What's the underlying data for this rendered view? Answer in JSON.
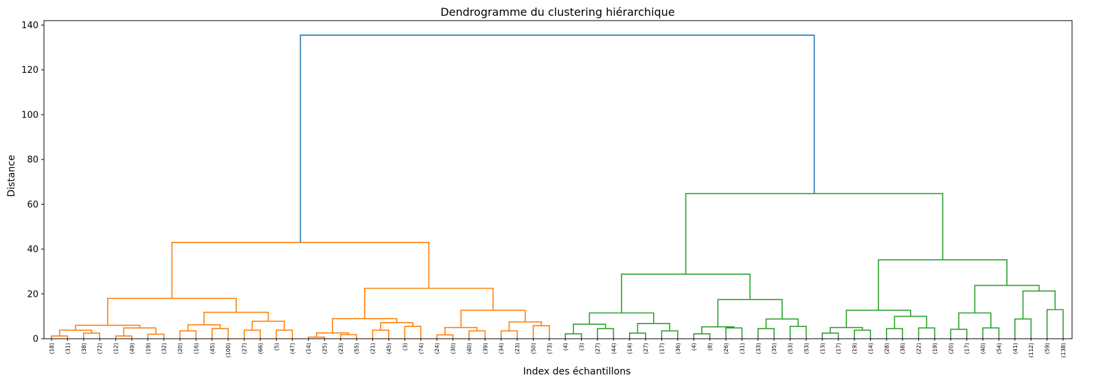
{
  "chart_data": {
    "type": "dendrogram",
    "title": "Dendrogramme du clustering hiérarchique",
    "xlabel": "Index des échantillons",
    "ylabel": "Distance",
    "ylim": [
      0,
      142
    ],
    "yticks": [
      0,
      20,
      40,
      60,
      80,
      100,
      120,
      140
    ],
    "grid": false,
    "colors": {
      "cluster_a": "#ff7f0e",
      "cluster_b": "#2ca02c",
      "root": "#1f77b4",
      "axis": "#000000"
    },
    "leaves": [
      "(18)",
      "(31)",
      "(38)",
      "(72)",
      "(12)",
      "(49)",
      "(19)",
      "(32)",
      "(20)",
      "(16)",
      "(45)",
      "(100)",
      "(27)",
      "(66)",
      "(5)",
      "(47)",
      "(14)",
      "(25)",
      "(23)",
      "(55)",
      "(21)",
      "(45)",
      "(3)",
      "(74)",
      "(24)",
      "(30)",
      "(40)",
      "(39)",
      "(34)",
      "(23)",
      "(50)",
      "(73)",
      "(4)",
      "(3)",
      "(27)",
      "(44)",
      "(14)",
      "(27)",
      "(17)",
      "(36)",
      "(4)",
      "(8)",
      "(26)",
      "(31)",
      "(33)",
      "(35)",
      "(53)",
      "(53)",
      "(13)",
      "(17)",
      "(19)",
      "(14)",
      "(28)",
      "(38)",
      "(22)",
      "(19)",
      "(20)",
      "(17)",
      "(40)",
      "(54)",
      "(41)",
      "(112)",
      "(59)",
      "(138)"
    ],
    "merges": [
      {
        "id": "a1",
        "l": 0,
        "r": 1,
        "h": 1.2,
        "c": "cluster_a"
      },
      {
        "id": "a2",
        "l": 2,
        "r": 3,
        "h": 2.5,
        "c": "cluster_a"
      },
      {
        "id": "a3",
        "l": "a1",
        "r": "a2",
        "h": 3.8,
        "c": "cluster_a"
      },
      {
        "id": "a4",
        "l": 4,
        "r": 5,
        "h": 1.2,
        "c": "cluster_a"
      },
      {
        "id": "a5",
        "l": 6,
        "r": 7,
        "h": 2.0,
        "c": "cluster_a"
      },
      {
        "id": "a6",
        "l": "a4",
        "r": "a5",
        "h": 4.8,
        "c": "cluster_a"
      },
      {
        "id": "a7",
        "l": "a3",
        "r": "a6",
        "h": 6.0,
        "c": "cluster_a"
      },
      {
        "id": "a8",
        "l": 8,
        "r": 9,
        "h": 3.5,
        "c": "cluster_a"
      },
      {
        "id": "a9",
        "l": 10,
        "r": 11,
        "h": 4.5,
        "c": "cluster_a"
      },
      {
        "id": "a10",
        "l": "a8",
        "r": "a9",
        "h": 6.2,
        "c": "cluster_a"
      },
      {
        "id": "a11",
        "l": 12,
        "r": 13,
        "h": 3.8,
        "c": "cluster_a"
      },
      {
        "id": "a12",
        "l": 14,
        "r": 15,
        "h": 3.8,
        "c": "cluster_a"
      },
      {
        "id": "a13",
        "l": "a11",
        "r": "a12",
        "h": 7.8,
        "c": "cluster_a"
      },
      {
        "id": "a14",
        "l": "a10",
        "r": "a13",
        "h": 11.8,
        "c": "cluster_a"
      },
      {
        "id": "a15",
        "l": "a7",
        "r": "a14",
        "h": 18.0,
        "c": "cluster_a"
      },
      {
        "id": "a16",
        "l": 16,
        "r": 17,
        "h": 0.7,
        "c": "cluster_a"
      },
      {
        "id": "a17",
        "l": 18,
        "r": 19,
        "h": 1.8,
        "c": "cluster_a"
      },
      {
        "id": "a18",
        "l": "a16",
        "r": "a17",
        "h": 2.6,
        "c": "cluster_a"
      },
      {
        "id": "a19",
        "l": 20,
        "r": 21,
        "h": 3.8,
        "c": "cluster_a"
      },
      {
        "id": "a20",
        "l": 22,
        "r": 23,
        "h": 5.5,
        "c": "cluster_a"
      },
      {
        "id": "a21",
        "l": "a19",
        "r": "a20",
        "h": 7.2,
        "c": "cluster_a"
      },
      {
        "id": "a22",
        "l": "a18",
        "r": "a21",
        "h": 9.0,
        "c": "cluster_a"
      },
      {
        "id": "a23",
        "l": 24,
        "r": 25,
        "h": 1.7,
        "c": "cluster_a"
      },
      {
        "id": "a24",
        "l": 26,
        "r": 27,
        "h": 3.5,
        "c": "cluster_a"
      },
      {
        "id": "a25",
        "l": "a23",
        "r": "a24",
        "h": 5.0,
        "c": "cluster_a"
      },
      {
        "id": "a26",
        "l": 28,
        "r": 29,
        "h": 3.5,
        "c": "cluster_a"
      },
      {
        "id": "a27",
        "l": 30,
        "r": 31,
        "h": 5.8,
        "c": "cluster_a"
      },
      {
        "id": "a28",
        "l": "a26",
        "r": "a27",
        "h": 7.5,
        "c": "cluster_a"
      },
      {
        "id": "a29",
        "l": "a25",
        "r": "a28",
        "h": 12.7,
        "c": "cluster_a"
      },
      {
        "id": "a30",
        "l": "a22",
        "r": "a29",
        "h": 22.5,
        "c": "cluster_a"
      },
      {
        "id": "a31",
        "l": "a15",
        "r": "a30",
        "h": 43.0,
        "c": "cluster_a"
      },
      {
        "id": "b1",
        "l": 32,
        "r": 33,
        "h": 2.2,
        "c": "cluster_b"
      },
      {
        "id": "b2",
        "l": 34,
        "r": 35,
        "h": 4.5,
        "c": "cluster_b"
      },
      {
        "id": "b3",
        "l": "b1",
        "r": "b2",
        "h": 6.5,
        "c": "cluster_b"
      },
      {
        "id": "b4",
        "l": 36,
        "r": 37,
        "h": 2.5,
        "c": "cluster_b"
      },
      {
        "id": "b5",
        "l": 38,
        "r": 39,
        "h": 3.5,
        "c": "cluster_b"
      },
      {
        "id": "b6",
        "l": "b4",
        "r": "b5",
        "h": 6.8,
        "c": "cluster_b"
      },
      {
        "id": "b7",
        "l": "b3",
        "r": "b6",
        "h": 11.5,
        "c": "cluster_b"
      },
      {
        "id": "b8",
        "l": 40,
        "r": 41,
        "h": 2.2,
        "c": "cluster_b"
      },
      {
        "id": "b9",
        "l": 42,
        "r": 43,
        "h": 4.8,
        "c": "cluster_b"
      },
      {
        "id": "b10",
        "l": "b8",
        "r": "b9",
        "h": 5.3,
        "c": "cluster_b"
      },
      {
        "id": "b11",
        "l": 44,
        "r": 45,
        "h": 4.5,
        "c": "cluster_b"
      },
      {
        "id": "b12",
        "l": 46,
        "r": 47,
        "h": 5.5,
        "c": "cluster_b"
      },
      {
        "id": "b13",
        "l": "b11",
        "r": "b12",
        "h": 8.8,
        "c": "cluster_b"
      },
      {
        "id": "b14",
        "l": "b10",
        "r": "b13",
        "h": 17.5,
        "c": "cluster_b"
      },
      {
        "id": "b15",
        "l": "b7",
        "r": "b14",
        "h": 28.8,
        "c": "cluster_b"
      },
      {
        "id": "b16",
        "l": 48,
        "r": 49,
        "h": 2.5,
        "c": "cluster_b"
      },
      {
        "id": "b17",
        "l": 50,
        "r": 51,
        "h": 3.8,
        "c": "cluster_b"
      },
      {
        "id": "b18",
        "l": "b16",
        "r": "b17",
        "h": 5.0,
        "c": "cluster_b"
      },
      {
        "id": "b19",
        "l": 52,
        "r": 53,
        "h": 4.5,
        "c": "cluster_b"
      },
      {
        "id": "b20",
        "l": 54,
        "r": 55,
        "h": 4.8,
        "c": "cluster_b"
      },
      {
        "id": "b21",
        "l": "b19",
        "r": "b20",
        "h": 10.0,
        "c": "cluster_b"
      },
      {
        "id": "b22",
        "l": "b18",
        "r": "b21",
        "h": 12.7,
        "c": "cluster_b"
      },
      {
        "id": "b23",
        "l": 56,
        "r": 57,
        "h": 4.2,
        "c": "cluster_b"
      },
      {
        "id": "b24",
        "l": 58,
        "r": 59,
        "h": 4.8,
        "c": "cluster_b"
      },
      {
        "id": "b25",
        "l": "b23",
        "r": "b24",
        "h": 11.5,
        "c": "cluster_b"
      },
      {
        "id": "b26",
        "l": 60,
        "r": 61,
        "h": 8.8,
        "c": "cluster_b"
      },
      {
        "id": "b27",
        "l": 62,
        "r": 63,
        "h": 13.0,
        "c": "cluster_b"
      },
      {
        "id": "b28",
        "l": "b26",
        "r": "b27",
        "h": 21.3,
        "c": "cluster_b"
      },
      {
        "id": "b29",
        "l": "b25",
        "r": "b28",
        "h": 23.8,
        "c": "cluster_b"
      },
      {
        "id": "b30",
        "l": "b22",
        "r": "b29",
        "h": 35.2,
        "c": "cluster_b"
      },
      {
        "id": "b31",
        "l": "b15",
        "r": "b30",
        "h": 64.8,
        "c": "cluster_b"
      },
      {
        "id": "root",
        "l": "a31",
        "r": "b31",
        "h": 135.5,
        "c": "root"
      }
    ]
  }
}
